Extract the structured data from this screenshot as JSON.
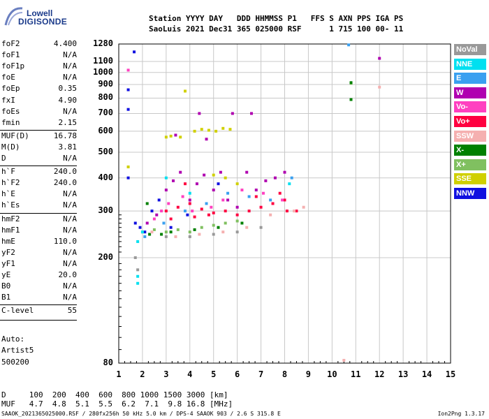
{
  "logo": {
    "line1": "Lowell",
    "line2": "DIGISONDE"
  },
  "header": {
    "line1": "Station YYYY DAY   DDD HHMMSS P1   FFS S AXN PPS IGA PS",
    "line2": "SaoLuis 2021 Dec31 365 025000 RSF      1 715 100 00- 11"
  },
  "params": [
    {
      "label": "foF2",
      "value": "4.400"
    },
    {
      "label": "foF1",
      "value": "N/A"
    },
    {
      "label": "foF1p",
      "value": "N/A"
    },
    {
      "label": "foE",
      "value": "N/A"
    },
    {
      "label": "foEp",
      "value": "0.35"
    },
    {
      "label": "fxI",
      "value": "4.90"
    },
    {
      "label": "foEs",
      "value": "N/A"
    },
    {
      "label": "fmin",
      "value": "2.15"
    },
    {
      "label": "MUF(D)",
      "value": "16.78"
    },
    {
      "label": "M(D)",
      "value": "3.81"
    },
    {
      "label": "D",
      "value": "N/A"
    },
    {
      "label": "h`F",
      "value": "240.0"
    },
    {
      "label": "h`F2",
      "value": "240.0"
    },
    {
      "label": "h`E",
      "value": "N/A"
    },
    {
      "label": "h`Es",
      "value": "N/A"
    },
    {
      "label": "hmF2",
      "value": "N/A"
    },
    {
      "label": "hmF1",
      "value": "N/A"
    },
    {
      "label": "hmE",
      "value": "110.0"
    },
    {
      "label": "yF2",
      "value": "N/A"
    },
    {
      "label": "yF1",
      "value": "N/A"
    },
    {
      "label": "yE",
      "value": "20.0"
    },
    {
      "label": "B0",
      "value": "N/A"
    },
    {
      "label": "B1",
      "value": "N/A"
    },
    {
      "label": "C-level",
      "value": "55"
    }
  ],
  "auto": {
    "line1": "Auto:",
    "line2": "Artist5",
    "line3": "500200"
  },
  "legend": [
    {
      "label": "NoVal",
      "color": "#999999"
    },
    {
      "label": "NNE",
      "color": "#00e0f0"
    },
    {
      "label": "E",
      "color": "#3aa0f0"
    },
    {
      "label": "W",
      "color": "#b000b0"
    },
    {
      "label": "Vo-",
      "color": "#ff40c0"
    },
    {
      "label": "Vo+",
      "color": "#ff0040"
    },
    {
      "label": "SSW",
      "color": "#f5b0b0"
    },
    {
      "label": "X-",
      "color": "#008000"
    },
    {
      "label": "X+",
      "color": "#80c060"
    },
    {
      "label": "SSE",
      "color": "#d0d000"
    },
    {
      "label": "NNW",
      "color": "#1010e0"
    }
  ],
  "bottom": {
    "line1": "D     100  200  400  600  800 1000 1500 3000 [km]",
    "line2": "MUF   4.7  4.8  5.1  5.5  6.2  7.1  9.8 16.8 [MHz]"
  },
  "footer": "SAAOK_2021365025000.RSF / 280fx256h 50 kHz 5.0 km / DPS-4 SAAOK 903 / 2.6 S 315.8 E",
  "version": "Ion2Png 1.3.17",
  "chart_data": {
    "type": "scatter",
    "title": "",
    "xlabel": "",
    "ylabel": "",
    "xlim": [
      1,
      15
    ],
    "ylim": [
      80,
      1280
    ],
    "x_ticks": [
      1,
      2,
      3,
      4,
      5,
      6,
      7,
      8,
      9,
      10,
      11,
      12,
      13,
      14,
      15
    ],
    "y_ticks": [
      80,
      200,
      300,
      400,
      500,
      600,
      700,
      800,
      900,
      1000,
      1100,
      1280
    ],
    "y_scale": "log",
    "grid": true,
    "legend_position": "right",
    "series": [
      {
        "name": "Vo+",
        "color": "#ff0040",
        "points": [
          [
            3.0,
            300
          ],
          [
            3.5,
            310
          ],
          [
            4.0,
            320
          ],
          [
            4.5,
            305
          ],
          [
            5.0,
            295
          ],
          [
            5.5,
            300
          ],
          [
            6.0,
            290
          ],
          [
            6.5,
            300
          ],
          [
            7.0,
            310
          ],
          [
            7.5,
            320
          ],
          [
            8.0,
            330
          ],
          [
            8.5,
            300
          ],
          [
            3.2,
            280
          ],
          [
            4.2,
            285
          ],
          [
            6.8,
            340
          ],
          [
            7.8,
            350
          ],
          [
            8.1,
            300
          ],
          [
            3.8,
            380
          ],
          [
            4.8,
            290
          ]
        ]
      },
      {
        "name": "W",
        "color": "#b000b0",
        "points": [
          [
            2.2,
            270
          ],
          [
            2.6,
            290
          ],
          [
            3.0,
            360
          ],
          [
            3.3,
            390
          ],
          [
            3.6,
            420
          ],
          [
            4.0,
            330
          ],
          [
            4.3,
            380
          ],
          [
            4.6,
            410
          ],
          [
            5.0,
            360
          ],
          [
            5.3,
            420
          ],
          [
            5.6,
            330
          ],
          [
            6.0,
            310
          ],
          [
            6.4,
            420
          ],
          [
            6.8,
            360
          ],
          [
            7.2,
            390
          ],
          [
            7.6,
            400
          ],
          [
            8.0,
            420
          ],
          [
            4.4,
            700
          ],
          [
            5.8,
            700
          ],
          [
            6.6,
            700
          ],
          [
            4.7,
            560
          ],
          [
            3.4,
            580
          ],
          [
            12.0,
            1130
          ]
        ]
      },
      {
        "name": "Vo-",
        "color": "#ff40c0",
        "points": [
          [
            2.8,
            300
          ],
          [
            3.1,
            320
          ],
          [
            3.7,
            340
          ],
          [
            4.1,
            300
          ],
          [
            4.9,
            310
          ],
          [
            5.4,
            330
          ],
          [
            6.2,
            360
          ],
          [
            7.1,
            350
          ],
          [
            7.9,
            330
          ],
          [
            2.5,
            280
          ],
          [
            1.4,
            1020
          ]
        ]
      },
      {
        "name": "NNW",
        "color": "#1010e0",
        "points": [
          [
            1.7,
            270
          ],
          [
            1.9,
            260
          ],
          [
            2.1,
            250
          ],
          [
            2.4,
            300
          ],
          [
            2.7,
            330
          ],
          [
            3.2,
            260
          ],
          [
            3.9,
            290
          ],
          [
            1.4,
            860
          ],
          [
            1.4,
            725
          ],
          [
            1.65,
            1195
          ],
          [
            1.4,
            400
          ],
          [
            5.2,
            380
          ]
        ]
      },
      {
        "name": "SSE",
        "color": "#d0d000",
        "points": [
          [
            4.2,
            600
          ],
          [
            4.5,
            610
          ],
          [
            4.8,
            605
          ],
          [
            5.1,
            600
          ],
          [
            5.4,
            615
          ],
          [
            5.7,
            610
          ],
          [
            3.2,
            575
          ],
          [
            3.6,
            570
          ],
          [
            3.0,
            570
          ],
          [
            5.0,
            410
          ],
          [
            5.5,
            400
          ],
          [
            6.0,
            380
          ],
          [
            3.8,
            850
          ],
          [
            1.4,
            440
          ]
        ]
      },
      {
        "name": "X+",
        "color": "#80c060",
        "points": [
          [
            2.0,
            250
          ],
          [
            2.5,
            255
          ],
          [
            3.0,
            250
          ],
          [
            3.5,
            255
          ],
          [
            4.0,
            250
          ],
          [
            4.5,
            260
          ],
          [
            5.0,
            265
          ],
          [
            5.5,
            270
          ],
          [
            6.0,
            275
          ],
          [
            10.8,
            910
          ]
        ]
      },
      {
        "name": "X-",
        "color": "#008000",
        "points": [
          [
            2.3,
            245
          ],
          [
            3.2,
            250
          ],
          [
            4.2,
            255
          ],
          [
            5.2,
            260
          ],
          [
            6.2,
            270
          ],
          [
            2.8,
            245
          ],
          [
            10.8,
            915
          ],
          [
            10.8,
            790
          ],
          [
            2.2,
            320
          ]
        ]
      },
      {
        "name": "NNE",
        "color": "#00e0f0",
        "points": [
          [
            1.8,
            230
          ],
          [
            1.8,
            170
          ],
          [
            1.8,
            160
          ],
          [
            2.0,
            250
          ],
          [
            3.0,
            400
          ],
          [
            4.0,
            350
          ],
          [
            8.2,
            380
          ]
        ]
      },
      {
        "name": "E",
        "color": "#3aa0f0",
        "points": [
          [
            2.1,
            240
          ],
          [
            2.9,
            270
          ],
          [
            3.8,
            300
          ],
          [
            4.7,
            320
          ],
          [
            5.6,
            350
          ],
          [
            6.5,
            340
          ],
          [
            7.4,
            330
          ],
          [
            8.3,
            400
          ],
          [
            10.7,
            1270
          ]
        ]
      },
      {
        "name": "SSW",
        "color": "#f5b0b0",
        "points": [
          [
            2.4,
            250
          ],
          [
            3.4,
            240
          ],
          [
            4.4,
            245
          ],
          [
            5.4,
            250
          ],
          [
            6.4,
            260
          ],
          [
            7.4,
            290
          ],
          [
            8.4,
            300
          ],
          [
            8.8,
            310
          ],
          [
            10.5,
            82
          ],
          [
            12.0,
            880
          ]
        ]
      },
      {
        "name": "NoVal",
        "color": "#999999",
        "points": [
          [
            1.8,
            180
          ],
          [
            1.7,
            200
          ],
          [
            3.0,
            240
          ],
          [
            4.0,
            240
          ],
          [
            5.0,
            245
          ],
          [
            6.0,
            250
          ],
          [
            7.0,
            260
          ]
        ]
      }
    ]
  }
}
